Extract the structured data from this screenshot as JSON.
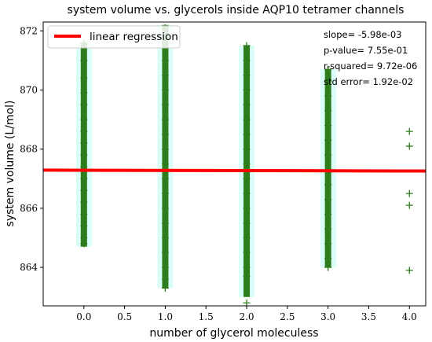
{
  "chart_data": {
    "type": "scatter",
    "title": "system volume vs. glycerols inside AQP10 tetramer channels",
    "xlabel": "number of glycerol moleculess",
    "ylabel": "system volume (L/mol)",
    "xlim": [
      -0.5,
      4.2
    ],
    "ylim": [
      862.7,
      872.3
    ],
    "x_ticks": [
      0.0,
      0.5,
      1.0,
      1.5,
      2.0,
      2.5,
      3.0,
      3.5,
      4.0
    ],
    "y_ticks": [
      864,
      866,
      868,
      870,
      872
    ],
    "grid": false,
    "legend": {
      "placement": "top-left",
      "entries": [
        "linear regression"
      ]
    },
    "annotations": [
      "slope= -5.98e-03",
      "p-value= 7.55e-01",
      "r-squared= 9.72e-06",
      "std error= 1.92e-02"
    ],
    "colors": {
      "points": "#2e7d1c",
      "band": "#d9fff8",
      "regression": "#ff0000"
    },
    "bands": [
      {
        "x": 0,
        "y_min": 864.7,
        "y_max": 871.6
      },
      {
        "x": 1,
        "y_min": 863.3,
        "y_max": 872.2
      },
      {
        "x": 2,
        "y_min": 863.0,
        "y_max": 871.5
      },
      {
        "x": 3,
        "y_min": 864.0,
        "y_max": 870.7
      }
    ],
    "points": [
      {
        "x": 0,
        "y": 871.6
      },
      {
        "x": 0,
        "y": 871.0
      },
      {
        "x": 0,
        "y": 870.4
      },
      {
        "x": 0,
        "y": 869.9
      },
      {
        "x": 0,
        "y": 869.5
      },
      {
        "x": 0,
        "y": 869.0
      },
      {
        "x": 0,
        "y": 868.6
      },
      {
        "x": 0,
        "y": 868.2
      },
      {
        "x": 0,
        "y": 867.8
      },
      {
        "x": 0,
        "y": 867.4
      },
      {
        "x": 0,
        "y": 867.0
      },
      {
        "x": 0,
        "y": 866.6
      },
      {
        "x": 0,
        "y": 866.2
      },
      {
        "x": 0,
        "y": 865.8
      },
      {
        "x": 0,
        "y": 865.4
      },
      {
        "x": 0,
        "y": 865.0
      },
      {
        "x": 0,
        "y": 864.8
      },
      {
        "x": 1,
        "y": 872.1
      },
      {
        "x": 1,
        "y": 871.6
      },
      {
        "x": 1,
        "y": 871.0
      },
      {
        "x": 1,
        "y": 870.5
      },
      {
        "x": 1,
        "y": 870.0
      },
      {
        "x": 1,
        "y": 869.5
      },
      {
        "x": 1,
        "y": 869.0
      },
      {
        "x": 1,
        "y": 868.5
      },
      {
        "x": 1,
        "y": 868.0
      },
      {
        "x": 1,
        "y": 867.5
      },
      {
        "x": 1,
        "y": 867.0
      },
      {
        "x": 1,
        "y": 866.5
      },
      {
        "x": 1,
        "y": 866.0
      },
      {
        "x": 1,
        "y": 865.5
      },
      {
        "x": 1,
        "y": 865.0
      },
      {
        "x": 1,
        "y": 864.5
      },
      {
        "x": 1,
        "y": 864.0
      },
      {
        "x": 1,
        "y": 863.6
      },
      {
        "x": 1,
        "y": 863.3
      },
      {
        "x": 2,
        "y": 871.5
      },
      {
        "x": 2,
        "y": 871.0
      },
      {
        "x": 2,
        "y": 870.5
      },
      {
        "x": 2,
        "y": 870.0
      },
      {
        "x": 2,
        "y": 869.5
      },
      {
        "x": 2,
        "y": 869.0
      },
      {
        "x": 2,
        "y": 868.5
      },
      {
        "x": 2,
        "y": 868.0
      },
      {
        "x": 2,
        "y": 867.5
      },
      {
        "x": 2,
        "y": 867.0
      },
      {
        "x": 2,
        "y": 866.5
      },
      {
        "x": 2,
        "y": 866.0
      },
      {
        "x": 2,
        "y": 865.5
      },
      {
        "x": 2,
        "y": 865.0
      },
      {
        "x": 2,
        "y": 864.5
      },
      {
        "x": 2,
        "y": 864.0
      },
      {
        "x": 2,
        "y": 863.7
      },
      {
        "x": 2,
        "y": 862.8
      },
      {
        "x": 3,
        "y": 870.7
      },
      {
        "x": 3,
        "y": 870.3
      },
      {
        "x": 3,
        "y": 869.8
      },
      {
        "x": 3,
        "y": 869.3
      },
      {
        "x": 3,
        "y": 868.8
      },
      {
        "x": 3,
        "y": 868.3
      },
      {
        "x": 3,
        "y": 867.8
      },
      {
        "x": 3,
        "y": 867.3
      },
      {
        "x": 3,
        "y": 866.8
      },
      {
        "x": 3,
        "y": 866.3
      },
      {
        "x": 3,
        "y": 865.8
      },
      {
        "x": 3,
        "y": 865.3
      },
      {
        "x": 3,
        "y": 864.8
      },
      {
        "x": 3,
        "y": 864.3
      },
      {
        "x": 3,
        "y": 864.0
      },
      {
        "x": 4,
        "y": 868.6
      },
      {
        "x": 4,
        "y": 868.1
      },
      {
        "x": 4,
        "y": 866.5
      },
      {
        "x": 4,
        "y": 866.1
      },
      {
        "x": 4,
        "y": 863.9
      }
    ],
    "regression": {
      "name": "linear regression",
      "x": [
        -0.5,
        4.2
      ],
      "y": [
        867.29,
        867.26
      ]
    }
  }
}
